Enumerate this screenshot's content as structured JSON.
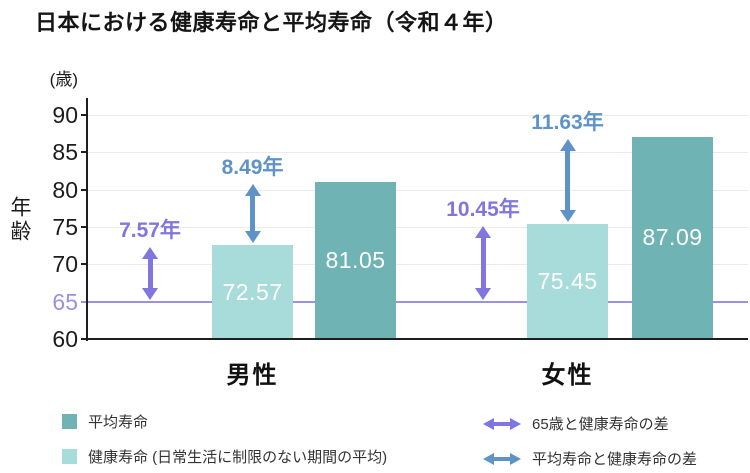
{
  "title": "日本における健康寿命と平均寿命（令和４年）",
  "y_axis": {
    "unit": "(歳)",
    "label": "年齢",
    "ticks": [
      60,
      65,
      70,
      75,
      80,
      85,
      90
    ],
    "highlight_tick": 65
  },
  "chart_data": {
    "type": "bar",
    "title": "日本における健康寿命と平均寿命（令和４年）",
    "categories": [
      "男性",
      "女性"
    ],
    "series": [
      {
        "name": "健康寿命",
        "color_key": "healthy",
        "values": [
          72.57,
          75.45
        ]
      },
      {
        "name": "平均寿命",
        "color_key": "average",
        "values": [
          81.05,
          87.09
        ]
      }
    ],
    "bar_value_labels": {
      "healthy": [
        "72.57",
        "75.45"
      ],
      "average": [
        "81.05",
        "87.09"
      ]
    },
    "annotations": [
      {
        "label": "7.57年",
        "color": "purple",
        "category": "男性",
        "from": 65,
        "to": 72.57
      },
      {
        "label": "8.49年",
        "color": "blue",
        "category": "男性",
        "from": 72.57,
        "to": 81.05
      },
      {
        "label": "10.45年",
        "color": "purple",
        "category": "女性",
        "from": 65,
        "to": 75.45
      },
      {
        "label": "11.63年",
        "color": "blue",
        "category": "女性",
        "from": 75.45,
        "to": 87.09
      }
    ],
    "baseline": 65,
    "ylabel": "年齢",
    "y_unit": "(歳)",
    "ylim": [
      60,
      90
    ],
    "yticks": [
      60,
      65,
      70,
      75,
      80,
      85,
      90
    ],
    "grid": true,
    "legend_position": "bottom"
  },
  "legend": {
    "items": [
      {
        "swatch": "average",
        "label": "平均寿命"
      },
      {
        "swatch": "healthy",
        "label": "健康寿命 (日常生活に制限のない期間の平均)"
      }
    ],
    "arrow_items": [
      {
        "color": "purple",
        "label": "65歳と健康寿命の差"
      },
      {
        "color": "blue",
        "label": "平均寿命と健康寿命の差"
      }
    ]
  },
  "colors": {
    "average_bar": "#6FB3B5",
    "healthy_bar": "#A8DCDB",
    "purple": "#8175DF",
    "blue": "#5F93C8",
    "baseline_65": "#9B91E4",
    "grid": "#EBEBEB",
    "axis": "#1E1E1E",
    "tick_label": "#1C1C1C",
    "bar_value_text": "#FFFFFF",
    "legend_text": "#333333"
  }
}
